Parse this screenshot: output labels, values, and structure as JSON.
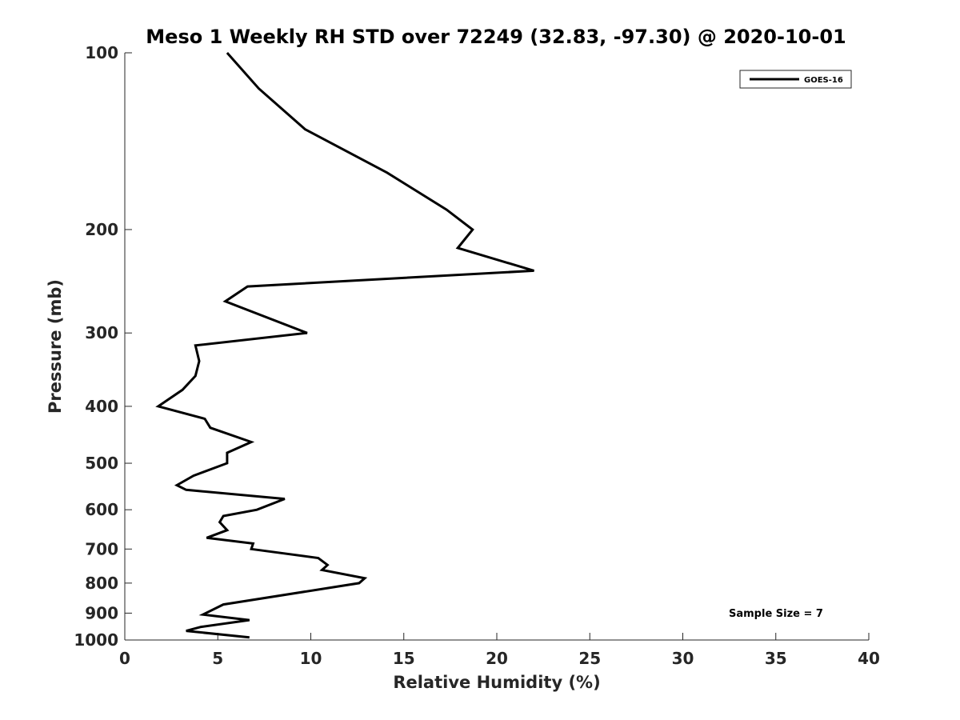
{
  "chart_data": {
    "type": "line",
    "title": "Meso 1 Weekly RH STD over 72249 (32.83, -97.30) @ 2020-10-01",
    "xlabel": "Relative Humidity (%)",
    "ylabel": "Pressure (mb)",
    "xlim": [
      0,
      40
    ],
    "ylim": [
      1000,
      100
    ],
    "yscale": "log",
    "y_reversed": true,
    "grid": false,
    "legend_position": "top-right",
    "xticks": [
      0,
      5,
      10,
      15,
      20,
      25,
      30,
      35,
      40
    ],
    "xtick_labels": [
      "0",
      "5",
      "10",
      "15",
      "20",
      "25",
      "30",
      "35",
      "40"
    ],
    "yticks": [
      100,
      200,
      300,
      400,
      500,
      600,
      700,
      800,
      900,
      1000
    ],
    "ytick_labels": [
      "100",
      "200",
      "300",
      "400",
      "500",
      "600",
      "700",
      "800",
      "900",
      "1000"
    ],
    "series": [
      {
        "name": "GOES-16",
        "color": "#000000",
        "x": [
          5.5,
          7.2,
          9.7,
          14.1,
          17.3,
          18.7,
          17.9,
          22.0,
          6.6,
          5.4,
          9.8,
          3.8,
          4.0,
          3.8,
          3.1,
          1.8,
          4.3,
          4.6,
          6.8,
          5.5,
          5.5,
          3.7,
          2.8,
          3.3,
          8.6,
          7.1,
          5.3,
          5.1,
          5.5,
          4.4,
          6.9,
          6.8,
          10.4,
          10.9,
          10.6,
          12.9,
          12.6,
          5.3,
          4.2,
          6.7,
          4.1,
          3.3,
          6.7
        ],
        "y": [
          100,
          115,
          135,
          160,
          185,
          200,
          215,
          235,
          250,
          265,
          300,
          315,
          335,
          355,
          375,
          400,
          420,
          435,
          460,
          480,
          500,
          525,
          545,
          555,
          575,
          600,
          615,
          630,
          650,
          670,
          685,
          700,
          725,
          745,
          760,
          785,
          800,
          870,
          905,
          925,
          950,
          965,
          990
        ]
      }
    ],
    "annotations": [
      "Sample Size = 7"
    ]
  }
}
